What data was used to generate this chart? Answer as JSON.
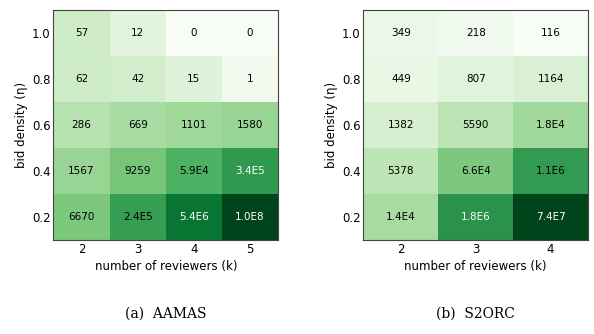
{
  "aamas": {
    "caption": "(a)  AAMAS",
    "k_values": [
      2,
      3,
      4,
      5
    ],
    "eta_values": [
      "0.2",
      "0.4",
      "0.6",
      "0.8",
      "1.0"
    ],
    "values": [
      [
        6670,
        240000,
        5400000,
        100000000
      ],
      [
        1567,
        9259,
        59000,
        340000
      ],
      [
        286,
        669,
        1101,
        1580
      ],
      [
        62,
        42,
        15,
        1
      ],
      [
        57,
        12,
        0,
        0
      ]
    ],
    "labels": [
      [
        "6670",
        "2.4E5",
        "5.4E6",
        "1.0E8"
      ],
      [
        "1567",
        "9259",
        "5.9E4",
        "3.4E5"
      ],
      [
        "286",
        "669",
        "1101",
        "1580"
      ],
      [
        "62",
        "42",
        "15",
        "1"
      ],
      [
        "57",
        "12",
        "0",
        "0"
      ]
    ],
    "xlabel": "number of reviewers (k)",
    "ylabel": "bid density (η)"
  },
  "s2orc": {
    "caption": "(b)  S2ORC",
    "k_values": [
      2,
      3,
      4
    ],
    "eta_values": [
      "0.2",
      "0.4",
      "0.6",
      "0.8",
      "1.0"
    ],
    "values": [
      [
        14000,
        1800000,
        74000000
      ],
      [
        5378,
        66000,
        1100000
      ],
      [
        1382,
        5590,
        18000
      ],
      [
        449,
        807,
        1164
      ],
      [
        349,
        218,
        116
      ]
    ],
    "labels": [
      [
        "1.4E4",
        "1.8E6",
        "7.4E7"
      ],
      [
        "5378",
        "6.6E4",
        "1.1E6"
      ],
      [
        "1382",
        "5590",
        "1.8E4"
      ],
      [
        "449",
        "807",
        "1164"
      ],
      [
        "349",
        "218",
        "116"
      ]
    ],
    "xlabel": "number of reviewers (k)",
    "ylabel": "bid density (η)"
  },
  "cmap": "Greens",
  "bg_color": "#ffffff"
}
